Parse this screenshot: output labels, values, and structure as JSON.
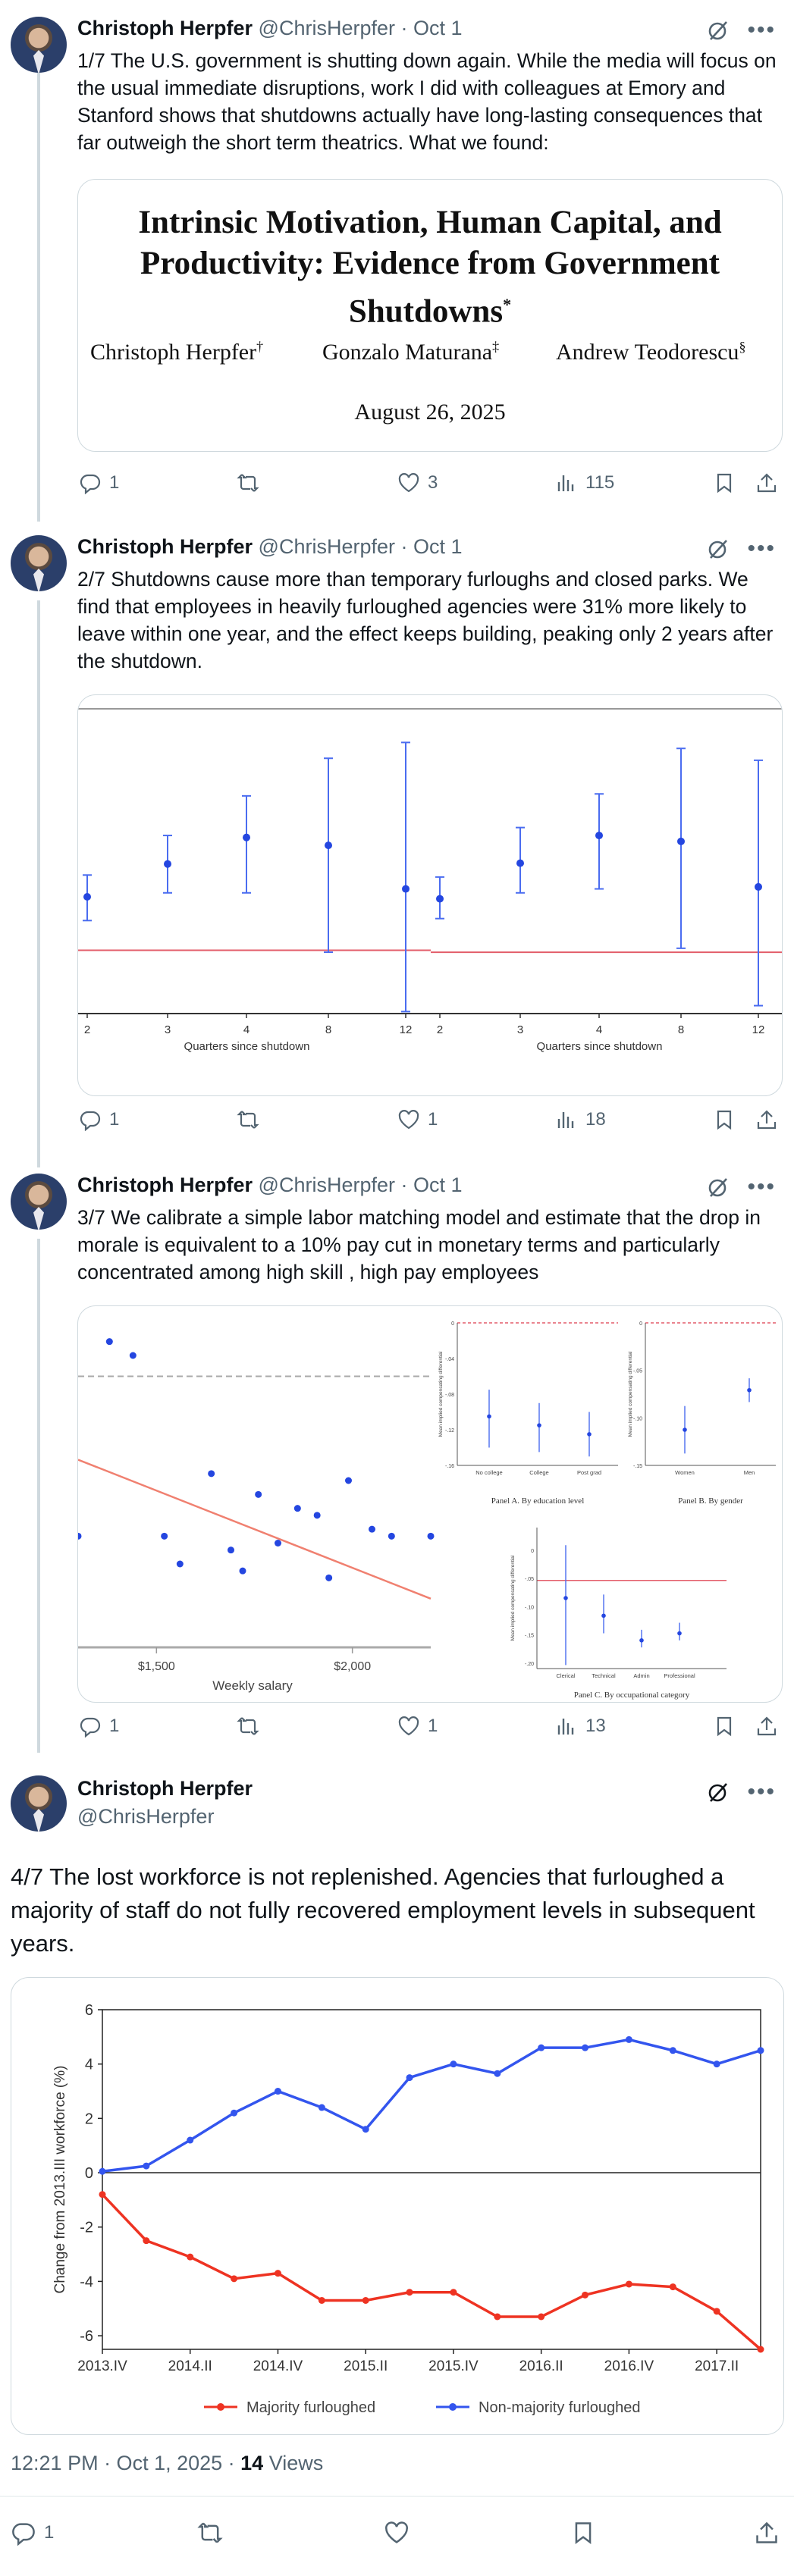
{
  "author": {
    "name": "Christoph Herpfer",
    "handle": "@ChrisHerpfer",
    "dot": "·"
  },
  "posts": [
    {
      "date": "Oct 1",
      "text": "1/7 The U.S. government is shutting down again. While the media will focus on the usual immediate disruptions, work I did with colleagues at Emory and Stanford shows that shutdowns actually have long-lasting consequences that far outweigh the short term theatrics. What we found:",
      "replies": "1",
      "reposts": "",
      "likes": "3",
      "views": "115"
    },
    {
      "date": "Oct 1",
      "text": "2/7 Shutdowns cause more than temporary furloughs and closed parks. We find that employees in heavily furloughed agencies were 31% more likely to leave within one year, and the effect keeps building, peaking only 2 years after the shutdown.",
      "replies": "1",
      "reposts": "",
      "likes": "1",
      "views": "18"
    },
    {
      "date": "Oct 1",
      "text": "3/7 We calibrate a simple labor matching model and estimate that the drop in morale is equivalent to a 10% pay cut in monetary terms and particularly concentrated among high skill , high pay employees",
      "replies": "1",
      "reposts": "",
      "likes": "1",
      "views": "13"
    },
    {
      "text": "4/7 The lost workforce is not replenished. Agencies that furloughed a majority of staff do not fully recovered employment levels in subsequent years."
    }
  ],
  "paper": {
    "title_line1": "Intrinsic Motivation, Human Capital, and",
    "title_line2": "Productivity: Evidence from Government",
    "title_line3": "Shutdowns",
    "title_mark": "*",
    "author1": "Christoph Herpfer",
    "mark1": "†",
    "author2": "Gonzalo Maturana",
    "mark2": "‡",
    "author3": "Andrew Teodorescu",
    "mark3": "§",
    "date": "August 26, 2025"
  },
  "meta": {
    "time": "12:21 PM · Oct 1, 2025 · ",
    "views_count": "14",
    "views_label": " Views"
  },
  "chart_data": [
    {
      "type": "scatter",
      "title": "",
      "xlabel": "Quarters since shutdown",
      "categories": [
        "2",
        "3",
        "4",
        "8",
        "12"
      ],
      "values": [
        -0.55,
        0.28,
        0.95,
        0.75,
        -0.35
      ],
      "lower": [
        -1.15,
        -0.45,
        -0.45,
        -1.95,
        -3.45
      ],
      "upper": [
        0.0,
        1.0,
        2.0,
        2.95,
        3.35
      ],
      "reference": -1.9,
      "ylim": [
        -3.5,
        4.2
      ]
    },
    {
      "type": "scatter",
      "title": "",
      "xlabel": "Quarters since shutdown",
      "categories": [
        "2",
        "3",
        "4",
        "8",
        "12"
      ],
      "values": [
        -0.6,
        0.3,
        1.0,
        0.85,
        -0.3
      ],
      "lower": [
        -1.1,
        -0.45,
        -0.35,
        -1.85,
        -3.3
      ],
      "upper": [
        -0.05,
        1.2,
        2.05,
        3.2,
        2.9
      ],
      "reference": -1.95,
      "ylim": [
        -3.5,
        4.2
      ]
    },
    {
      "type": "scatter",
      "title": "",
      "xlabel": "Weekly salary",
      "x_ticks": [
        "$1,500",
        "$2,000"
      ],
      "x": [
        1300,
        1380,
        1440,
        1520,
        1560,
        1640,
        1690,
        1720,
        1760,
        1810,
        1860,
        1910,
        1940,
        1990,
        2050,
        2100,
        2200
      ],
      "y": [
        -0.6,
        0.8,
        0.7,
        -0.6,
        -0.8,
        -0.15,
        -0.7,
        -0.85,
        -0.3,
        -0.65,
        -0.4,
        -0.45,
        -0.9,
        -0.2,
        -0.55,
        -0.6,
        -0.6
      ],
      "fit": [
        [
          1300,
          -0.05
        ],
        [
          2200,
          -1.05
        ]
      ],
      "dashed_ref": 0.55
    },
    {
      "type": "scatter",
      "title": "Panel A. By education level",
      "ylabel": "Mean implied compensating differential",
      "categories": [
        "No college",
        "College",
        "Post grad"
      ],
      "values": [
        -0.105,
        -0.115,
        -0.125
      ],
      "lower": [
        -0.14,
        -0.145,
        -0.15
      ],
      "upper": [
        -0.075,
        -0.09,
        -0.1
      ],
      "y_ticks": [
        "0",
        "-.04",
        "-.08",
        "-.12",
        "-.16"
      ]
    },
    {
      "type": "scatter",
      "title": "Panel B. By gender",
      "ylabel": "Mean implied compensating differential",
      "categories": [
        "Women",
        "Men"
      ],
      "values": [
        -0.135,
        -0.085
      ],
      "lower": [
        -0.165,
        -0.1
      ],
      "upper": [
        -0.105,
        -0.07
      ],
      "y_ticks": [
        "0",
        "-.05",
        "-.10",
        "-.15"
      ]
    },
    {
      "type": "scatter",
      "title": "Panel C. By occupational category",
      "ylabel": "Mean implied compensating differential",
      "categories": [
        "Clerical",
        "Technical",
        "Admin",
        "Professional"
      ],
      "values": [
        -0.05,
        -0.1,
        -0.17,
        -0.15
      ],
      "lower": [
        -0.24,
        -0.15,
        -0.19,
        -0.17
      ],
      "upper": [
        0.1,
        -0.04,
        -0.14,
        -0.12
      ],
      "y_ticks": [
        "0",
        "-.05",
        "-.10",
        "-.15",
        "-.20"
      ]
    },
    {
      "type": "line",
      "title": "",
      "ylabel": "Change from 2013.III workforce (%)",
      "x": [
        "2013.IV",
        "2014.I",
        "2014.II",
        "2014.III",
        "2014.IV",
        "2015.I",
        "2015.II",
        "2015.III",
        "2015.IV",
        "2016.I",
        "2016.II",
        "2016.III",
        "2016.IV",
        "2017.I",
        "2017.II",
        "2017.III"
      ],
      "x_tick_labels": [
        "2013.IV",
        "2014.II",
        "2014.IV",
        "2015.II",
        "2015.IV",
        "2016.II",
        "2016.IV",
        "2017.II"
      ],
      "ylim": [
        -6.5,
        6
      ],
      "y_ticks": [
        6,
        4,
        2,
        0,
        -2,
        -4,
        -6
      ],
      "series": [
        {
          "name": "Majority furloughed",
          "color": "#ee3322",
          "values": [
            -0.8,
            -2.5,
            -3.1,
            -3.9,
            -3.7,
            -4.7,
            -4.7,
            -4.4,
            -4.4,
            -5.3,
            -5.3,
            -4.5,
            -4.1,
            -4.2,
            -5.1,
            -6.5
          ]
        },
        {
          "name": "Non-majority furloughed",
          "color": "#3355ee",
          "values": [
            0.05,
            0.25,
            1.2,
            2.2,
            3.0,
            2.4,
            1.6,
            3.5,
            4.0,
            3.65,
            4.6,
            4.6,
            4.9,
            4.5,
            4.0,
            4.5
          ]
        }
      ]
    }
  ]
}
